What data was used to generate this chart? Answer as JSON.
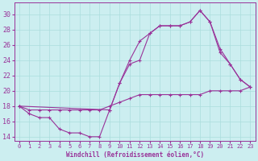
{
  "xlabel": "Windchill (Refroidissement éolien,°C)",
  "bg_color": "#cceef0",
  "line_color": "#993399",
  "grid_color": "#aadddd",
  "xlim": [
    -0.5,
    23.5
  ],
  "ylim": [
    13.5,
    31.5
  ],
  "yticks": [
    14,
    16,
    18,
    20,
    22,
    24,
    26,
    28,
    30
  ],
  "xticks": [
    0,
    1,
    2,
    3,
    4,
    5,
    6,
    7,
    8,
    9,
    10,
    11,
    12,
    13,
    14,
    15,
    16,
    17,
    18,
    19,
    20,
    21,
    22,
    23
  ],
  "line1_x": [
    0,
    1,
    2,
    3,
    4,
    5,
    6,
    7,
    8,
    9,
    10,
    11,
    12,
    13,
    14,
    15,
    16,
    17,
    18,
    19,
    20,
    21,
    22,
    23
  ],
  "line1_y": [
    18,
    17,
    16.5,
    16.5,
    15,
    14.5,
    14.5,
    14,
    14,
    17.5,
    21,
    23.5,
    24,
    27.5,
    28.5,
    28.5,
    28.5,
    29,
    30.5,
    29,
    25,
    23.5,
    21.5,
    20.5
  ],
  "line2_x": [
    0,
    1,
    2,
    3,
    4,
    5,
    6,
    7,
    8,
    9,
    10,
    11,
    12,
    13,
    14,
    15,
    16,
    17,
    18,
    19,
    20,
    21,
    22,
    23
  ],
  "line2_y": [
    18,
    17.5,
    17.5,
    17.5,
    17.5,
    17.5,
    17.5,
    17.5,
    17.5,
    18,
    18.5,
    19,
    19.5,
    19.5,
    19.5,
    19.5,
    19.5,
    19.5,
    19.5,
    20,
    20,
    20,
    20,
    20.5
  ],
  "line3_x": [
    0,
    9,
    10,
    11,
    12,
    13,
    14,
    15,
    16,
    17,
    18,
    19,
    20,
    21,
    22,
    23
  ],
  "line3_y": [
    18,
    17.5,
    21,
    24,
    26.5,
    27.5,
    28.5,
    28.5,
    28.5,
    29,
    30.5,
    29,
    25.5,
    23.5,
    21.5,
    20.5
  ]
}
